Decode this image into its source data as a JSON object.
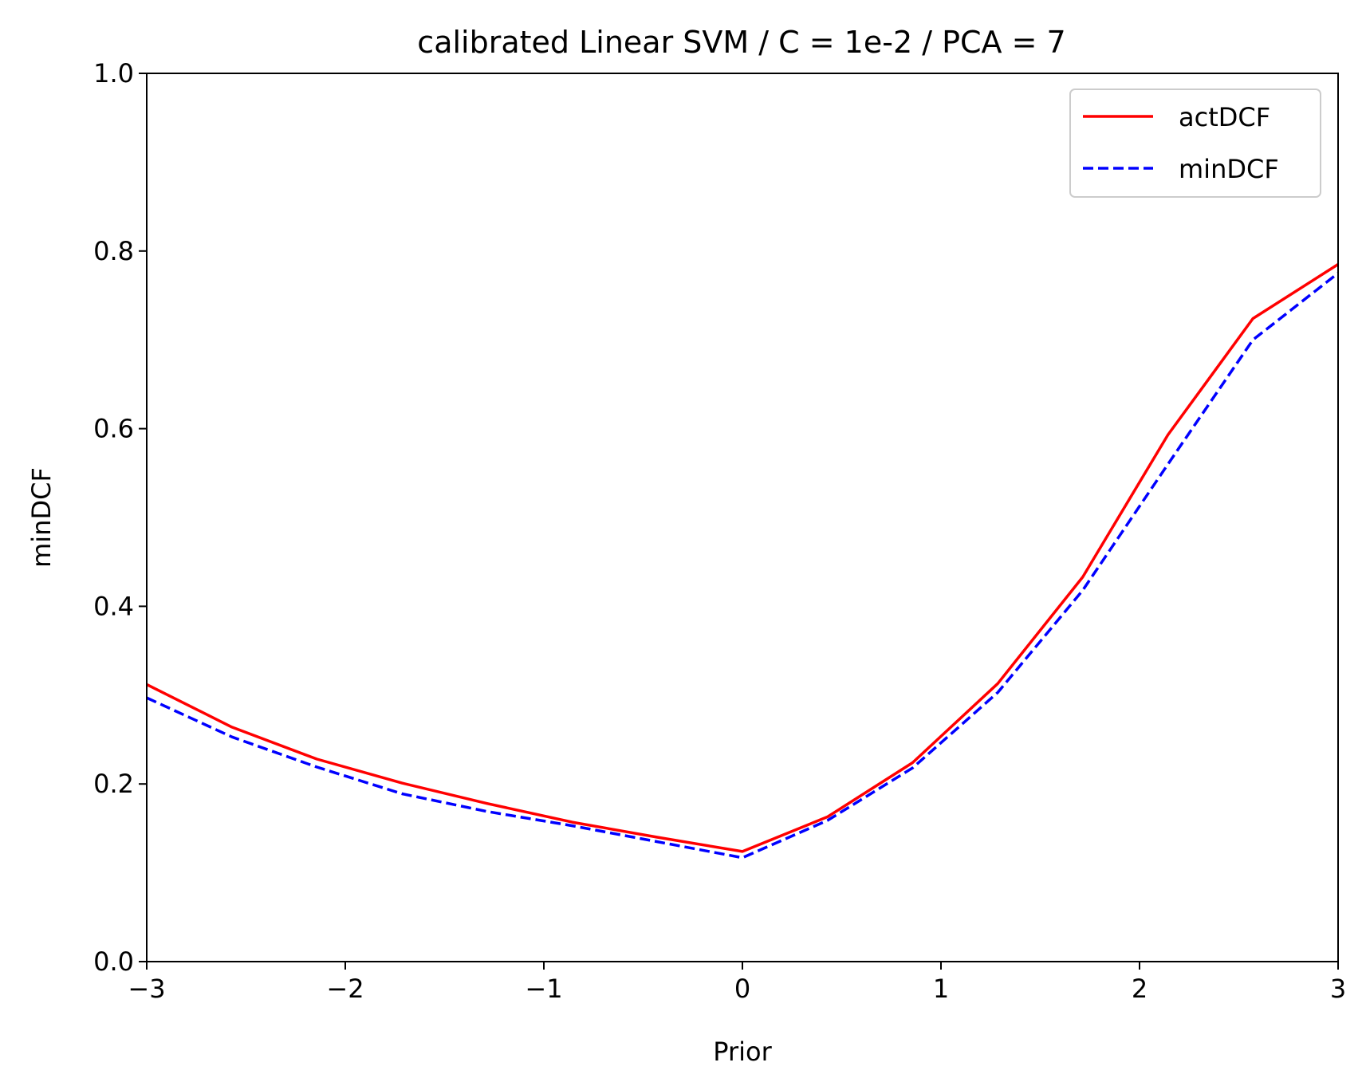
{
  "chart_data": {
    "type": "line",
    "title": "calibrated  Linear SVM / C = 1e-2 / PCA = 7",
    "xlabel": "Prior",
    "ylabel": "minDCF",
    "xlim": [
      -3,
      3
    ],
    "ylim": [
      0,
      1
    ],
    "xticks": [
      -3,
      -2,
      -1,
      0,
      1,
      2,
      3
    ],
    "xtick_labels": [
      "−3",
      "−2",
      "−1",
      "0",
      "1",
      "2",
      "3"
    ],
    "yticks": [
      0,
      0.2,
      0.4,
      0.6,
      0.8,
      1.0
    ],
    "ytick_labels": [
      "0.0",
      "0.2",
      "0.4",
      "0.6",
      "0.8",
      "1.0"
    ],
    "grid": false,
    "legend": {
      "placement": "top-right"
    },
    "series": [
      {
        "name": "actDCF",
        "color": "#ff0000",
        "style": "solid",
        "x": [
          -3,
          -2.571,
          -2.143,
          -1.714,
          -1.286,
          -0.857,
          -0.429,
          0,
          0.429,
          0.857,
          1.286,
          1.714,
          2.143,
          2.571,
          3
        ],
        "y": [
          0.312,
          0.264,
          0.228,
          0.201,
          0.178,
          0.157,
          0.14,
          0.124,
          0.163,
          0.224,
          0.313,
          0.433,
          0.593,
          0.724,
          0.785
        ]
      },
      {
        "name": "minDCF",
        "color": "#0000ff",
        "style": "dashed",
        "x": [
          -3,
          -2.571,
          -2.143,
          -1.714,
          -1.286,
          -0.857,
          -0.429,
          0,
          0.429,
          0.857,
          1.286,
          1.714,
          2.143,
          2.571,
          3
        ],
        "y": [
          0.297,
          0.253,
          0.219,
          0.189,
          0.169,
          0.153,
          0.135,
          0.117,
          0.159,
          0.218,
          0.303,
          0.418,
          0.56,
          0.7,
          0.775
        ]
      }
    ]
  }
}
